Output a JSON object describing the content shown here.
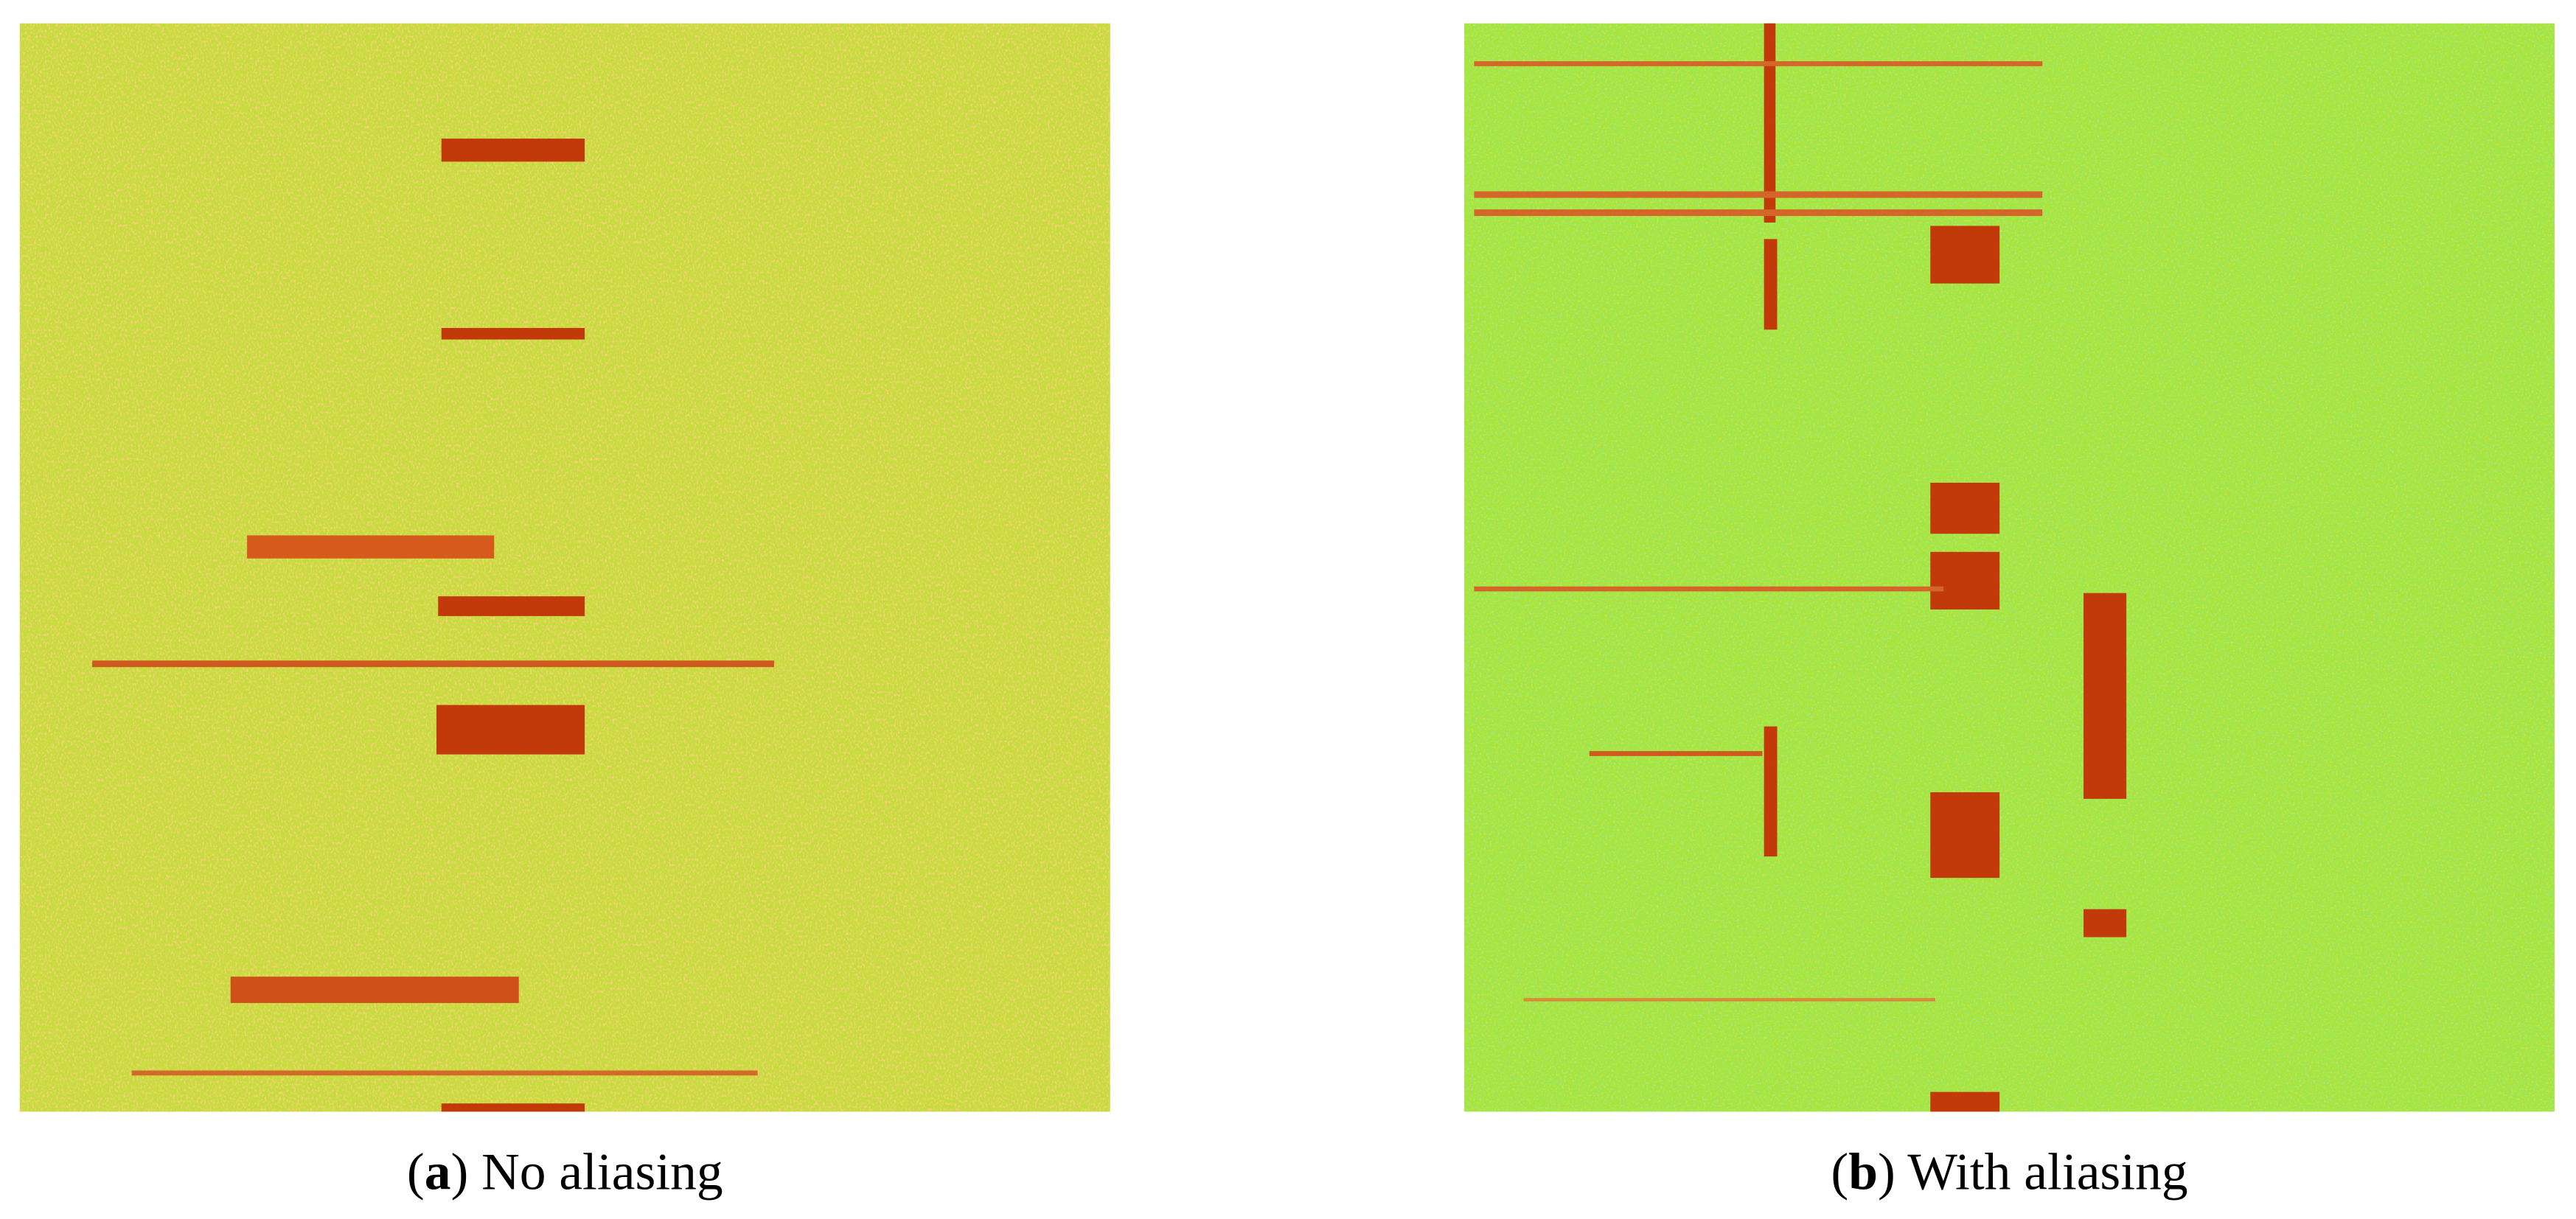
{
  "panels": [
    {
      "caption": {
        "open": "(",
        "label": "a",
        "rest": ") No aliasing"
      }
    },
    {
      "caption": {
        "open": "(",
        "label": "b",
        "rest": ") With aliasing"
      }
    }
  ]
}
